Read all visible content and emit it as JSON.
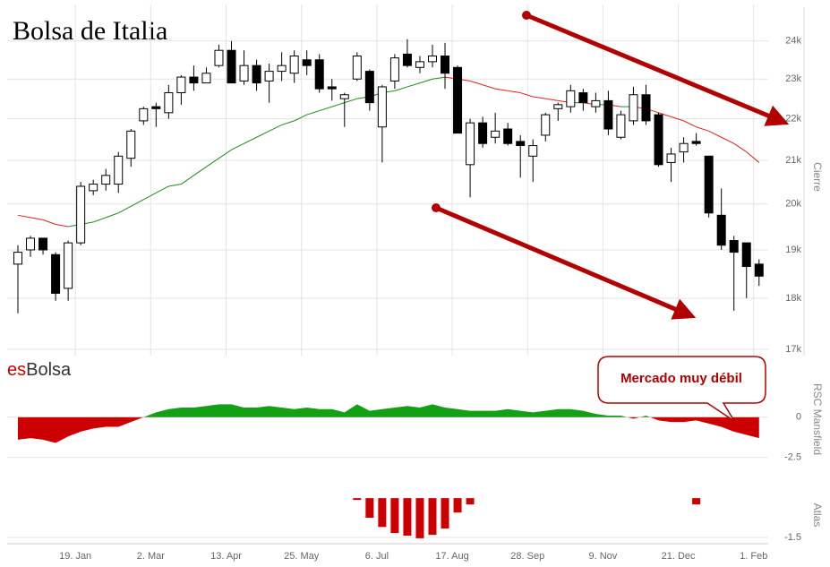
{
  "brand": [
    "es",
    "Bolsa"
  ],
  "chart_data": [
    {
      "type": "candlestick",
      "title": "Bolsa de Italia",
      "categories": [
        null,
        null,
        null,
        null,
        null,
        "19. Jan",
        null,
        null,
        null,
        null,
        null,
        "2. Mar",
        null,
        null,
        null,
        null,
        null,
        "13. Apr",
        null,
        null,
        null,
        null,
        null,
        "25. May",
        null,
        null,
        null,
        null,
        null,
        "6. Jul",
        null,
        null,
        null,
        null,
        null,
        "17. Aug",
        null,
        null,
        null,
        null,
        null,
        "28. Sep",
        null,
        null,
        null,
        null,
        null,
        "9. Nov",
        null,
        null,
        null,
        null,
        null,
        "21. Dec",
        null,
        null,
        null,
        null,
        null,
        "1. Feb"
      ],
      "open": [
        18700,
        19000,
        19250,
        18900,
        18200,
        19150,
        20300,
        20450,
        20450,
        21050,
        21950,
        22300,
        22150,
        22650,
        23050,
        22900,
        23350,
        23750,
        22950,
        23350,
        22950,
        23200,
        23150,
        23500,
        23500,
        22800,
        22500,
        23000,
        23200,
        21800,
        22950,
        23650,
        23300,
        23450,
        23600,
        23300,
        20900,
        21900,
        21550,
        21750,
        21450,
        21100,
        21600,
        22250,
        22300,
        22650,
        22300,
        22450,
        21550,
        21950,
        22600,
        22100,
        20950,
        21200,
        21450,
        21100,
        19750,
        19200,
        19150,
        18700
      ],
      "high": [
        19100,
        19300,
        19250,
        18950,
        19200,
        20500,
        20550,
        20800,
        21200,
        21750,
        22300,
        22400,
        22850,
        23100,
        23350,
        23300,
        23900,
        24000,
        23750,
        23500,
        23400,
        23700,
        23750,
        23750,
        23650,
        23000,
        22650,
        23700,
        23250,
        22850,
        23650,
        24050,
        23600,
        23900,
        23950,
        23350,
        22000,
        22050,
        22150,
        21900,
        21600,
        21500,
        22150,
        22400,
        22850,
        22750,
        22650,
        22700,
        22200,
        22800,
        22850,
        22150,
        21300,
        21550,
        21650,
        21100,
        20350,
        19300,
        19150,
        18800
      ],
      "low": [
        17700,
        18850,
        18900,
        17950,
        17950,
        19100,
        20200,
        20300,
        20250,
        20850,
        21850,
        21800,
        22000,
        22350,
        22700,
        22900,
        23300,
        22900,
        22850,
        22700,
        22400,
        22950,
        22900,
        23100,
        22650,
        22450,
        21800,
        22950,
        22200,
        20950,
        22750,
        23300,
        23150,
        23300,
        22750,
        21650,
        20150,
        21300,
        21400,
        21350,
        20600,
        20500,
        21450,
        21950,
        22150,
        22200,
        22150,
        21600,
        21500,
        21850,
        21850,
        20850,
        20500,
        20950,
        21350,
        19700,
        19000,
        17750,
        18000,
        18250
      ],
      "close": [
        18950,
        19250,
        19000,
        18100,
        19150,
        20400,
        20450,
        20650,
        21100,
        21700,
        22250,
        22250,
        22650,
        23050,
        22900,
        23150,
        23750,
        22900,
        23350,
        22900,
        23200,
        23350,
        23600,
        23350,
        22750,
        22750,
        22600,
        23600,
        22400,
        22800,
        23550,
        23350,
        23450,
        23600,
        23150,
        21650,
        21900,
        21400,
        21700,
        21400,
        21350,
        21350,
        22100,
        22350,
        22700,
        22400,
        22450,
        21750,
        22100,
        22600,
        21950,
        20900,
        21150,
        21400,
        21400,
        19800,
        19100,
        18950,
        18650,
        18450
      ],
      "up_color": "#ffffff",
      "down_color": "#000000",
      "moving_average": {
        "values": [
          19750,
          19700,
          19650,
          19550,
          19500,
          19550,
          19600,
          19700,
          19800,
          19950,
          20100,
          20250,
          20400,
          20450,
          20650,
          20850,
          21050,
          21250,
          21400,
          21550,
          21700,
          21850,
          21950,
          22100,
          22200,
          22300,
          22400,
          22500,
          22550,
          22650,
          22700,
          22800,
          22900,
          23000,
          23050,
          23000,
          22950,
          22850,
          22750,
          22700,
          22650,
          22550,
          22500,
          22450,
          22400,
          22400,
          22350,
          22350,
          22300,
          22300,
          22250,
          22150,
          22050,
          21950,
          21800,
          21700,
          21550,
          21400,
          21200,
          20950
        ],
        "rising_color": "#1f8a1f",
        "falling_color": "#e02020"
      },
      "log_scale": true,
      "ylim": [
        17000,
        25000
      ],
      "yticks": [
        {
          "value": 17000,
          "label": "17k"
        },
        {
          "value": 18000,
          "label": "18k"
        },
        {
          "value": 19000,
          "label": "19k"
        },
        {
          "value": 20000,
          "label": "20k"
        },
        {
          "value": 21000,
          "label": "21k"
        },
        {
          "value": 22000,
          "label": "22k"
        },
        {
          "value": 23000,
          "label": "23k"
        },
        {
          "value": 24000,
          "label": "24k"
        }
      ],
      "y_label": "Cierre",
      "grid": true
    },
    {
      "type": "area",
      "values": [
        -1.4,
        -1.3,
        -1.4,
        -1.6,
        -1.2,
        -0.9,
        -0.7,
        -0.6,
        -0.6,
        -0.3,
        0,
        0.3,
        0.5,
        0.6,
        0.6,
        0.7,
        0.8,
        0.8,
        0.6,
        0.6,
        0.7,
        0.6,
        0.5,
        0.6,
        0.5,
        0.5,
        0.3,
        0.8,
        0.4,
        0.5,
        0.6,
        0.7,
        0.6,
        0.8,
        0.6,
        0.5,
        0.4,
        0.4,
        0.4,
        0.5,
        0.4,
        0.3,
        0.4,
        0.5,
        0.5,
        0.4,
        0.2,
        0.1,
        0.1,
        -0.1,
        0.1,
        -0.2,
        -0.3,
        -0.3,
        -0.2,
        -0.4,
        -0.6,
        -0.9,
        -1.1,
        -1.3
      ],
      "positive_color": "#14a014",
      "negative_color": "#cc0000",
      "ylim": [
        -2.8,
        2.55
      ],
      "yticks": [
        0,
        -2.5
      ],
      "y_label": "RSC Mansfield",
      "annotation": "Mercado muy débil",
      "grid": true
    },
    {
      "type": "bar",
      "values": [
        null,
        null,
        null,
        null,
        null,
        null,
        null,
        null,
        null,
        null,
        null,
        null,
        null,
        null,
        null,
        null,
        null,
        null,
        null,
        null,
        null,
        null,
        null,
        null,
        null,
        null,
        null,
        -0.07,
        -0.75,
        -1.1,
        -1.33,
        -1.43,
        -1.53,
        -1.4,
        -1.16,
        -0.55,
        -0.24,
        null,
        null,
        null,
        null,
        null,
        null,
        null,
        null,
        null,
        null,
        null,
        null,
        null,
        null,
        null,
        null,
        null,
        -0.24,
        null,
        null,
        null,
        null,
        null
      ],
      "color": "#cc0000",
      "ylim": [
        -1.67,
        0.38
      ],
      "yticks": [
        -1.5
      ],
      "y_label": "Atlas",
      "grid": true
    }
  ]
}
